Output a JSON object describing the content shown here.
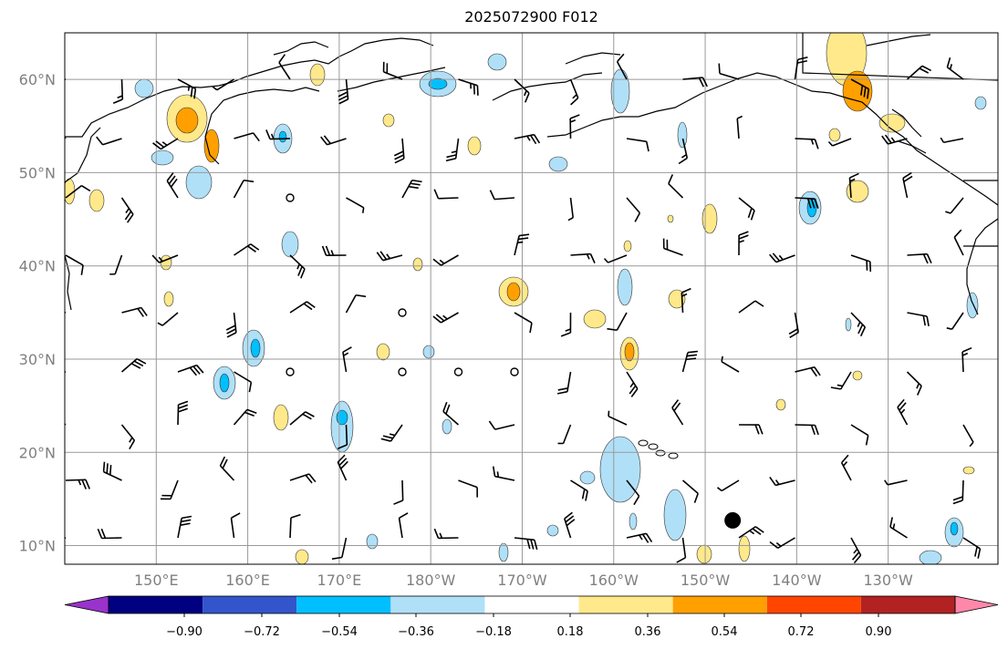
{
  "title": "2025072900 F012",
  "map": {
    "lat_labels": [
      "60°N",
      "50°N",
      "40°N",
      "30°N",
      "20°N",
      "10°N"
    ],
    "lon_labels": [
      "150°E",
      "160°E",
      "170°E",
      "180°W",
      "170°W",
      "160°W",
      "150°W",
      "140°W",
      "130°W"
    ],
    "lat_range": [
      8,
      65
    ],
    "lon_range": [
      140,
      242
    ]
  },
  "colorbar": {
    "ticks": [
      "−0.90",
      "−0.72",
      "−0.54",
      "−0.36",
      "−0.18",
      "0.18",
      "0.36",
      "0.54",
      "0.72",
      "0.90"
    ],
    "colors": [
      "#9933cc",
      "#000080",
      "#3355cc",
      "#00bfff",
      "#b0e0f8",
      "#ffffff",
      "#ffe98a",
      "#ffa000",
      "#ff4500",
      "#b22222",
      "#ff88aa"
    ],
    "extend": "both"
  },
  "storm_marker": {
    "lon": 213,
    "lat": 12.7
  },
  "colors": {
    "frame": "#000000",
    "grid": "#999999",
    "coast": "#000000"
  }
}
